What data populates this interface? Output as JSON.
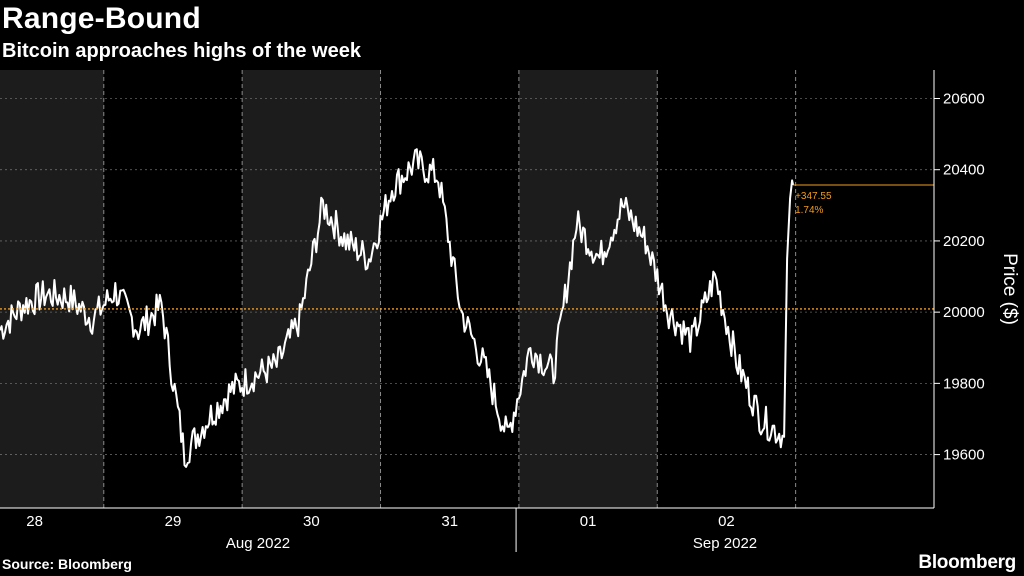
{
  "title": "Range-Bound",
  "subtitle": "Bitcoin approaches highs of the week",
  "source": "Source: Bloomberg",
  "brand": "Bloomberg",
  "colors": {
    "background": "#000000",
    "shade": "#1c1c1c",
    "line": "#ffffff",
    "reference": "#f39c1e",
    "grid": "#8a8a8a"
  },
  "chart_data": {
    "type": "line",
    "title": "Range-Bound",
    "subtitle": "Bitcoin approaches highs of the week",
    "ylabel": "Price ($)",
    "ylim": [
      19450,
      20680
    ],
    "yticks": [
      19600,
      19800,
      20000,
      20200,
      20400,
      20600
    ],
    "xlim": [
      "2022-08-27T18:00",
      "2022-09-03T12:00"
    ],
    "day_labels": [
      "28",
      "29",
      "30",
      "31",
      "01",
      "02"
    ],
    "day_label_dates": [
      "2022-08-28",
      "2022-08-29",
      "2022-08-30",
      "2022-08-31",
      "2022-09-01",
      "2022-09-02"
    ],
    "month_labels": [
      "Aug 2022",
      "Sep 2022"
    ],
    "month_split_date": "2022-09-01",
    "reference_line": 20009,
    "last_price_line": 20357,
    "annotation": [
      "+347.55",
      "1.74%"
    ],
    "grid": true,
    "x": [
      "2022-08-27T18:00",
      "2022-08-27T22:00",
      "2022-08-28T02:00",
      "2022-08-28T06:00",
      "2022-08-28T10:00",
      "2022-08-28T14:00",
      "2022-08-28T18:00",
      "2022-08-28T22:00",
      "2022-08-29T02:00",
      "2022-08-29T06:00",
      "2022-08-29T10:00",
      "2022-08-29T14:00",
      "2022-08-29T18:00",
      "2022-08-29T22:00",
      "2022-08-30T02:00",
      "2022-08-30T06:00",
      "2022-08-30T10:00",
      "2022-08-30T14:00",
      "2022-08-30T18:00",
      "2022-08-30T22:00",
      "2022-08-31T02:00",
      "2022-08-31T06:00",
      "2022-08-31T10:00",
      "2022-08-31T14:00",
      "2022-08-31T18:00",
      "2022-08-31T22:00",
      "2022-09-01T02:00",
      "2022-09-01T06:00",
      "2022-09-01T10:00",
      "2022-09-01T14:00",
      "2022-09-01T18:00",
      "2022-09-01T22:00",
      "2022-09-02T02:00",
      "2022-09-02T06:00",
      "2022-09-02T10:00"
    ],
    "y": [
      19950,
      20020,
      20050,
      20040,
      19980,
      20060,
      19950,
      20020,
      19600,
      19700,
      19780,
      19820,
      19850,
      19980,
      20300,
      20200,
      20150,
      20350,
      20420,
      20380,
      20000,
      19850,
      19650,
      19900,
      19830,
      20250,
      20150,
      20300,
      20200,
      20000,
      19920,
      20100,
      19850,
      19700,
      19650
    ]
  }
}
